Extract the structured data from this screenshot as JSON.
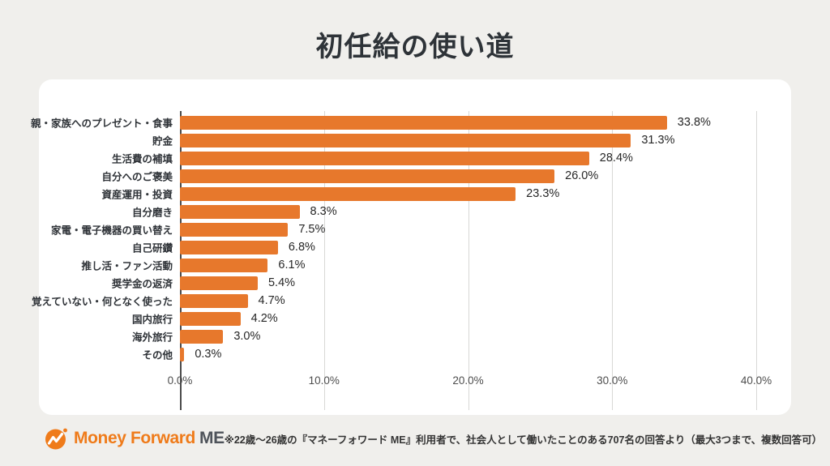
{
  "page": {
    "title": "初任給の使い道",
    "background_color": "#F0EFEC",
    "card_color": "#FFFFFF"
  },
  "chart_data": {
    "type": "bar",
    "orientation": "horizontal",
    "title": "初任給の使い道",
    "categories": [
      "親・家族へのプレゼント・食事",
      "貯金",
      "生活費の補填",
      "自分へのご褒美",
      "資産運用・投資",
      "自分磨き",
      "家電・電子機器の買い替え",
      "自己研鑽",
      "推し活・ファン活動",
      "奨学金の返済",
      "覚えていない・何となく使った",
      "国内旅行",
      "海外旅行",
      "その他"
    ],
    "values": [
      33.8,
      31.3,
      28.4,
      26.0,
      23.3,
      8.3,
      7.5,
      6.8,
      6.1,
      5.4,
      4.7,
      4.2,
      3.0,
      0.3
    ],
    "value_labels": [
      "33.8%",
      "31.3%",
      "28.4%",
      "26.0%",
      "23.3%",
      "8.3%",
      "7.5%",
      "6.8%",
      "6.1%",
      "5.4%",
      "4.7%",
      "4.2%",
      "3.0%",
      "0.3%"
    ],
    "xlim": [
      0,
      40
    ],
    "x_ticks": [
      "0.0%",
      "10.0%",
      "20.0%",
      "30.0%",
      "40.0%"
    ],
    "bar_color": "#E7782C",
    "gridline_color": "#D8D8D6",
    "axis_color": "#4B4B4B",
    "grid": true,
    "legend_position": "none"
  },
  "footer": {
    "logo": {
      "brand": "Money Forward",
      "suffix": "ME",
      "brand_color": "#EF7B1A",
      "suffix_color": "#4E535A"
    },
    "footnote": "※22歳〜26歳の『マネーフォワード ME』利用者で、社会人として働いたことのある707名の回答より（最大3つまで、複数回答可）"
  }
}
